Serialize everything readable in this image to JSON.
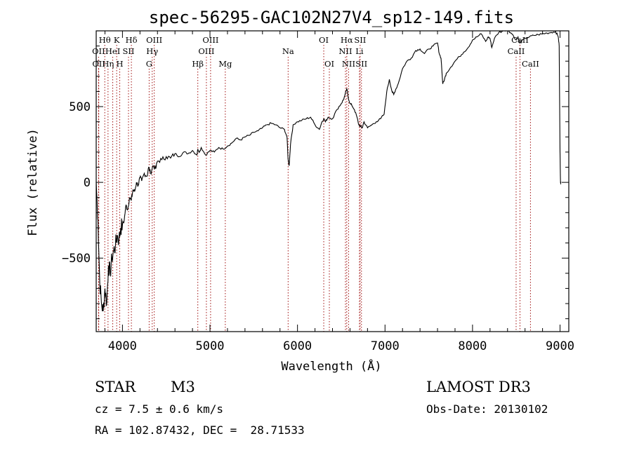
{
  "chart_data": {
    "type": "line",
    "title": "spec-56295-GAC102N27V4_sp12-149.fits",
    "xlabel": "Wavelength (Å)",
    "ylabel": "Flux (relative)",
    "xlim": [
      3700,
      9100
    ],
    "ylim": [
      -985,
      1000
    ],
    "xticks": [
      4000,
      5000,
      6000,
      7000,
      8000,
      9000
    ],
    "yticks": [
      -500,
      0,
      500
    ],
    "series": [
      {
        "name": "spectrum",
        "x": [
          3700,
          3720,
          3740,
          3760,
          3780,
          3800,
          3820,
          3840,
          3860,
          3880,
          3900,
          3920,
          3940,
          3960,
          3980,
          4000,
          4020,
          4040,
          4060,
          4080,
          4100,
          4120,
          4140,
          4160,
          4180,
          4200,
          4220,
          4250,
          4280,
          4300,
          4320,
          4350,
          4380,
          4400,
          4450,
          4500,
          4550,
          4600,
          4650,
          4700,
          4750,
          4800,
          4850,
          4861,
          4880,
          4900,
          4950,
          5000,
          5050,
          5100,
          5150,
          5200,
          5250,
          5300,
          5350,
          5400,
          5450,
          5500,
          5550,
          5600,
          5650,
          5700,
          5750,
          5800,
          5850,
          5880,
          5893,
          5905,
          5920,
          5950,
          6000,
          6050,
          6100,
          6150,
          6200,
          6250,
          6280,
          6300,
          6320,
          6350,
          6400,
          6450,
          6500,
          6520,
          6540,
          6563,
          6580,
          6600,
          6620,
          6650,
          6680,
          6700,
          6720,
          6740,
          6760,
          6800,
          6850,
          6900,
          6950,
          6990,
          7020,
          7050,
          7080,
          7100,
          7120,
          7150,
          7200,
          7250,
          7300,
          7350,
          7400,
          7450,
          7500,
          7550,
          7600,
          7620,
          7640,
          7660,
          7680,
          7700,
          7750,
          7800,
          7850,
          7900,
          7950,
          8000,
          8050,
          8100,
          8150,
          8180,
          8200,
          8220,
          8250,
          8300,
          8350,
          8400,
          8450,
          8500,
          8520,
          8540,
          8560,
          8600,
          8650,
          8700,
          8750,
          8800,
          8850,
          8900,
          8950,
          8980,
          8990,
          9000,
          9005,
          9010
        ],
        "y": [
          0,
          -250,
          -650,
          -800,
          -850,
          -700,
          -800,
          -550,
          -600,
          -500,
          -450,
          -420,
          -350,
          -380,
          -300,
          -280,
          -250,
          -150,
          -180,
          -100,
          -120,
          -50,
          -60,
          0,
          -20,
          30,
          10,
          60,
          40,
          100,
          60,
          110,
          90,
          140,
          150,
          170,
          160,
          190,
          170,
          200,
          190,
          210,
          180,
          220,
          200,
          230,
          180,
          210,
          200,
          230,
          220,
          240,
          260,
          290,
          280,
          300,
          310,
          330,
          340,
          360,
          380,
          390,
          380,
          360,
          350,
          300,
          150,
          110,
          250,
          380,
          400,
          410,
          420,
          430,
          380,
          350,
          400,
          420,
          400,
          430,
          420,
          480,
          520,
          540,
          570,
          620,
          560,
          520,
          510,
          480,
          430,
          380,
          370,
          360,
          400,
          360,
          380,
          400,
          420,
          450,
          600,
          680,
          600,
          580,
          610,
          650,
          750,
          800,
          820,
          870,
          880,
          850,
          880,
          900,
          920,
          850,
          820,
          650,
          680,
          720,
          760,
          800,
          830,
          860,
          890,
          940,
          960,
          980,
          930,
          960,
          950,
          890,
          950,
          990,
          1000,
          1010,
          980,
          940,
          960,
          920,
          930,
          950,
          960,
          970,
          975,
          980,
          985,
          990,
          995,
          960,
          900,
          200,
          0,
          0
        ]
      }
    ],
    "line_markers": [
      {
        "label": "Hθ",
        "wavelength": 3798,
        "row": 1
      },
      {
        "label": "OII",
        "wavelength": 3727,
        "row": 2
      },
      {
        "label": "OII",
        "wavelength": 3729,
        "row": 3
      },
      {
        "label": "K",
        "wavelength": 3934,
        "row": 1
      },
      {
        "label": "HeI",
        "wavelength": 3889,
        "row": 2
      },
      {
        "label": "Hη",
        "wavelength": 3835,
        "row": 3
      },
      {
        "label": "Hδ",
        "wavelength": 4102,
        "row": 1
      },
      {
        "label": "SII",
        "wavelength": 4069,
        "row": 2
      },
      {
        "label": "H",
        "wavelength": 3969,
        "row": 3
      },
      {
        "label": "OIII",
        "wavelength": 4363,
        "row": 1
      },
      {
        "label": "Hγ",
        "wavelength": 4340,
        "row": 2
      },
      {
        "label": "G",
        "wavelength": 4305,
        "row": 3
      },
      {
        "label": "OIII",
        "wavelength": 5007,
        "row": 1
      },
      {
        "label": "OIII",
        "wavelength": 4959,
        "row": 2
      },
      {
        "label": "Hβ",
        "wavelength": 4861,
        "row": 3
      },
      {
        "label": "Mg",
        "wavelength": 5175,
        "row": 3
      },
      {
        "label": "Na",
        "wavelength": 5893,
        "row": 2
      },
      {
        "label": "OI",
        "wavelength": 6300,
        "row": 1
      },
      {
        "label": "OI",
        "wavelength": 6364,
        "row": 3
      },
      {
        "label": "Hα",
        "wavelength": 6563,
        "row": 1
      },
      {
        "label": "SII",
        "wavelength": 6716,
        "row": 1
      },
      {
        "label": "NII",
        "wavelength": 6548,
        "row": 2
      },
      {
        "label": "Li",
        "wavelength": 6708,
        "row": 2
      },
      {
        "label": "NII",
        "wavelength": 6584,
        "row": 3
      },
      {
        "label": "SII",
        "wavelength": 6731,
        "row": 3
      },
      {
        "label": "CaII",
        "wavelength": 8542,
        "row": 1
      },
      {
        "label": "CaII",
        "wavelength": 8498,
        "row": 2
      },
      {
        "label": "CaII",
        "wavelength": 8662,
        "row": 3
      }
    ]
  },
  "info": {
    "object_class": "STAR",
    "subclass": "M3",
    "survey": "LAMOST DR3",
    "redshift": "cz = 7.5 ± 0.6 km/s",
    "obs_date": "Obs-Date: 20130102",
    "coords": "RA = 102.87432, DEC =  28.71533"
  },
  "colors": {
    "marker": "#a01010",
    "spectrum": "#000000"
  }
}
